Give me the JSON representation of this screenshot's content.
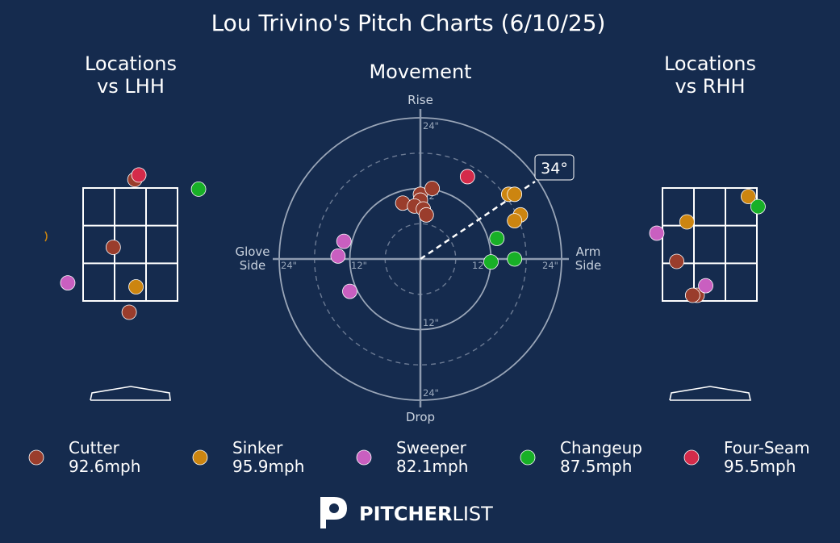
{
  "title": "Lou Trivino's Pitch Charts (6/10/25)",
  "panels": {
    "lhh_title_line1": "Locations",
    "lhh_title_line2": "vs LHH",
    "movement_title": "Movement",
    "rhh_title_line1": "Locations",
    "rhh_title_line2": "vs RHH"
  },
  "movement_axes": {
    "top": "Rise",
    "bottom": "Drop",
    "left_line1": "Glove",
    "left_line2": "Side",
    "right_line1": "Arm",
    "right_line2": "Side",
    "ring_labels": {
      "top_24": "24\"",
      "top_12": "12\"",
      "bottom_12": "12\"",
      "bottom_24": "24\"",
      "left_24": "24\"",
      "left_12": "12\"",
      "right_12": "12\"",
      "right_24": "24\""
    },
    "arm_angle_label": "34°",
    "arm_angle_deg": 34
  },
  "legend": [
    {
      "pitch": "Cutter",
      "speed": "92.6mph",
      "color": "#9a3d2c"
    },
    {
      "pitch": "Sinker",
      "speed": "95.9mph",
      "color": "#cc8510"
    },
    {
      "pitch": "Sweeper",
      "speed": "82.1mph",
      "color": "#c95fc0"
    },
    {
      "pitch": "Changeup",
      "speed": "87.5mph",
      "color": "#18b027"
    },
    {
      "pitch": "Four-Seam",
      "speed": "95.5mph",
      "color": "#d42b4a"
    }
  ],
  "brand": {
    "bold": "PITCHER",
    "light": "LIST"
  },
  "chart_data": [
    {
      "type": "scatter",
      "panel": "movement",
      "xlabel": "Glove Side / Arm Side (in)",
      "ylabel": "Drop / Rise (in)",
      "xlim": [
        -24,
        24
      ],
      "ylim": [
        -24,
        24
      ],
      "rings": [
        6,
        12,
        18,
        24
      ],
      "series": [
        {
          "name": "Cutter",
          "points": [
            [
              0,
              11
            ],
            [
              2,
              12
            ],
            [
              0,
              10
            ],
            [
              -3,
              9.5
            ],
            [
              -1,
              9
            ],
            [
              0.5,
              8.5
            ],
            [
              1,
              7.5
            ]
          ]
        },
        {
          "name": "Sinker",
          "points": [
            [
              15,
              11
            ],
            [
              16,
              11
            ],
            [
              17,
              7.5
            ],
            [
              16,
              6.5
            ]
          ]
        },
        {
          "name": "Sweeper",
          "points": [
            [
              -13,
              3
            ],
            [
              -14,
              0.5
            ],
            [
              -12,
              -5.5
            ]
          ]
        },
        {
          "name": "Changeup",
          "points": [
            [
              13,
              3.5
            ],
            [
              16,
              0
            ],
            [
              12,
              -0.5
            ]
          ]
        },
        {
          "name": "Four-Seam",
          "points": [
            [
              8,
              14
            ]
          ]
        }
      ]
    },
    {
      "type": "scatter",
      "panel": "locations_vs_lhh",
      "xlim": [
        -1.5,
        1.5
      ],
      "ylim": [
        1.2,
        4.0
      ],
      "zone": {
        "x": [
          -0.83,
          0.83
        ],
        "y": [
          1.5,
          3.5
        ]
      },
      "series": [
        {
          "name": "Cutter",
          "points": [
            [
              0.08,
              3.65
            ],
            [
              -0.3,
              2.45
            ],
            [
              -0.02,
              1.3
            ]
          ]
        },
        {
          "name": "Sinker",
          "points": [
            [
              0.1,
              1.75
            ]
          ]
        },
        {
          "name": "Sweeper",
          "points": [
            [
              -1.1,
              1.82
            ]
          ]
        },
        {
          "name": "Changeup",
          "points": [
            [
              1.2,
              3.48
            ]
          ]
        },
        {
          "name": "Four-Seam",
          "points": [
            [
              0.15,
              3.73
            ]
          ]
        }
      ]
    },
    {
      "type": "scatter",
      "panel": "locations_vs_rhh",
      "xlim": [
        -1.5,
        1.5
      ],
      "ylim": [
        1.2,
        4.0
      ],
      "zone": {
        "x": [
          -0.83,
          0.83
        ],
        "y": [
          1.5,
          3.5
        ]
      },
      "series": [
        {
          "name": "Cutter",
          "points": [
            [
              -0.22,
              1.6
            ],
            [
              -0.3,
              1.6
            ],
            [
              -0.58,
              2.2
            ]
          ]
        },
        {
          "name": "Sinker",
          "points": [
            [
              0.68,
              3.35
            ],
            [
              -0.4,
              2.9
            ]
          ]
        },
        {
          "name": "Sweeper",
          "points": [
            [
              -0.07,
              1.77
            ],
            [
              -0.93,
              2.7
            ]
          ]
        },
        {
          "name": "Changeup",
          "points": [
            [
              0.85,
              3.17
            ]
          ]
        },
        {
          "name": "Four-Seam",
          "points": []
        }
      ]
    }
  ]
}
